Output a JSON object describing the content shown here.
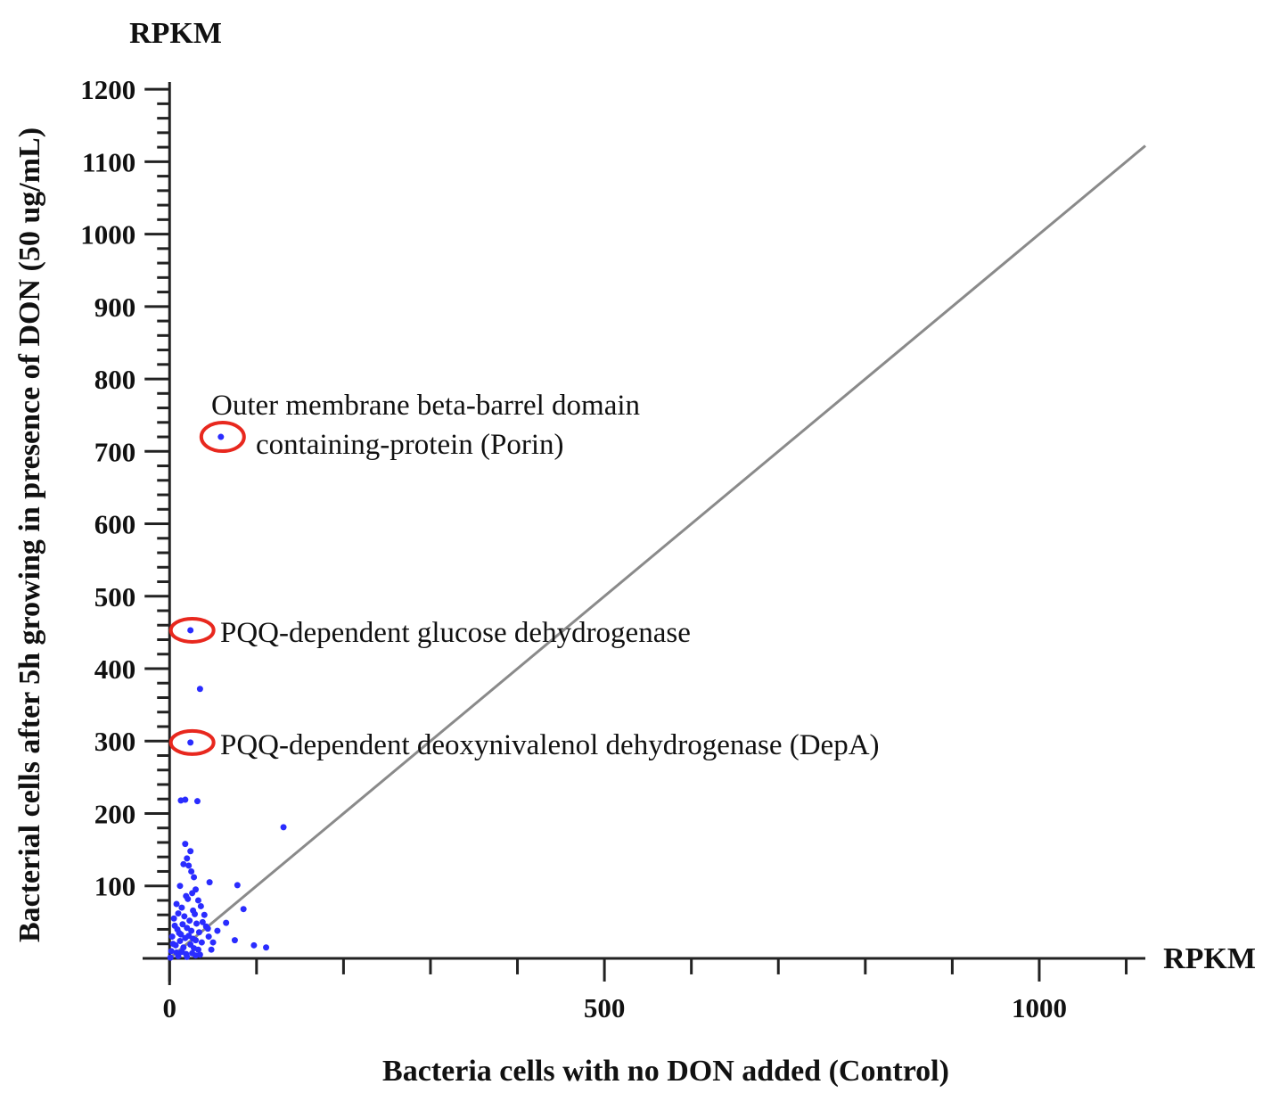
{
  "chart_data": {
    "type": "scatter",
    "x_label": "Bacteria cells with no DON added (Control)",
    "y_label": "Bacterial cells after 5h growing in presence of DON (50 ug/mL)",
    "x_unit": "RPKM",
    "y_unit": "RPKM",
    "color": "#2a2cff",
    "highlight_color": "#e8281e",
    "x": [
      59,
      24,
      24,
      35,
      13,
      18,
      32,
      131,
      18,
      24,
      78,
      85,
      65,
      75,
      97,
      111,
      46,
      20,
      22,
      25,
      28,
      16,
      30,
      12,
      26,
      19,
      33,
      8,
      14,
      21,
      27,
      36,
      40,
      10,
      5,
      17,
      23,
      29,
      31,
      38,
      42,
      6,
      9,
      15,
      20,
      25,
      34,
      44,
      3,
      11,
      13,
      18,
      22,
      27,
      30,
      37,
      4,
      7,
      12,
      16,
      24,
      28,
      33,
      2,
      8,
      14,
      19,
      26,
      35,
      45,
      50,
      55,
      48,
      10,
      20,
      30,
      1
    ],
    "values": [
      720,
      453,
      298,
      372,
      218,
      219,
      217,
      181,
      158,
      148,
      101,
      68,
      49,
      25,
      18,
      15,
      105,
      138,
      128,
      120,
      112,
      130,
      95,
      100,
      90,
      86,
      80,
      75,
      70,
      82,
      66,
      72,
      60,
      62,
      55,
      58,
      52,
      61,
      48,
      50,
      44,
      45,
      40,
      47,
      42,
      38,
      36,
      41,
      30,
      35,
      33,
      28,
      31,
      27,
      25,
      22,
      20,
      18,
      24,
      15,
      19,
      14,
      12,
      10,
      8,
      9,
      6,
      7,
      5,
      30,
      22,
      38,
      12,
      3,
      2,
      4,
      1
    ],
    "reference_line": {
      "color": "#8a8a8a",
      "x": [
        0,
        1122
      ],
      "y": [
        0,
        1122
      ]
    },
    "annotations": [
      [
        "Outer membrane beta-barrel domain",
        "containing-protein (Porin)"
      ],
      [
        "PQQ-dependent glucose dehydrogenase"
      ],
      [
        "PQQ-dependent deoxynivalenol dehydrogenase (DepA)"
      ]
    ],
    "xlim": [
      -31,
      1122
    ],
    "ylim": [
      -37,
      1210
    ],
    "xticks": [
      0,
      500,
      1000
    ],
    "x_minor_ticks": [
      100,
      200,
      300,
      400,
      600,
      700,
      800,
      900,
      1100
    ],
    "yticks": [
      100,
      200,
      300,
      400,
      500,
      600,
      700,
      800,
      900,
      1000,
      1100,
      1200
    ],
    "y_minor_ticks": [
      20,
      40,
      60,
      80,
      120,
      140,
      160,
      180,
      220,
      240,
      260,
      280,
      320,
      340,
      360,
      380,
      420,
      440,
      460,
      480,
      520,
      540,
      560,
      580,
      620,
      640,
      660,
      680,
      720,
      740,
      760,
      780,
      820,
      840,
      860,
      880,
      920,
      940,
      960,
      980,
      1020,
      1040,
      1060,
      1080,
      1120,
      1140,
      1160,
      1180
    ]
  }
}
